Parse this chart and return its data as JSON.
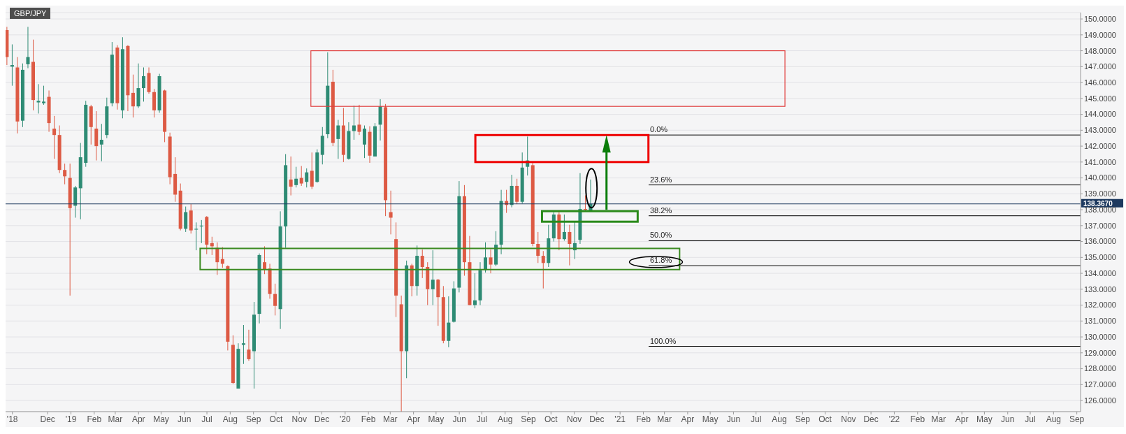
{
  "chart_data": {
    "type": "candlestick",
    "title": "GBP/JPY",
    "x": [
      "2018-10-08",
      "2018-10-15",
      "2018-10-22",
      "2018-10-29",
      "2018-11-05",
      "2018-11-12",
      "2018-11-19",
      "2018-11-26",
      "2018-12-03",
      "2018-12-10",
      "2018-12-17",
      "2018-12-24",
      "2018-12-31",
      "2019-01-07",
      "2019-01-14",
      "2019-01-21",
      "2019-01-28",
      "2019-02-04",
      "2019-02-11",
      "2019-02-18",
      "2019-02-25",
      "2019-03-04",
      "2019-03-11",
      "2019-03-18",
      "2019-03-25",
      "2019-04-01",
      "2019-04-08",
      "2019-04-15",
      "2019-04-22",
      "2019-04-29",
      "2019-05-06",
      "2019-05-13",
      "2019-05-20",
      "2019-05-27",
      "2019-06-03",
      "2019-06-10",
      "2019-06-17",
      "2019-06-24",
      "2019-07-01",
      "2019-07-08",
      "2019-07-15",
      "2019-07-22",
      "2019-07-29",
      "2019-08-05",
      "2019-08-12",
      "2019-08-19",
      "2019-08-26",
      "2019-09-02",
      "2019-09-09",
      "2019-09-16",
      "2019-09-23",
      "2019-09-30",
      "2019-10-07",
      "2019-10-14",
      "2019-10-21",
      "2019-10-28",
      "2019-11-04",
      "2019-11-11",
      "2019-11-18",
      "2019-11-25",
      "2019-12-02",
      "2019-12-09",
      "2019-12-16",
      "2019-12-23",
      "2019-12-30",
      "2020-01-06",
      "2020-01-13",
      "2020-01-20",
      "2020-01-27",
      "2020-02-03",
      "2020-02-10",
      "2020-02-17",
      "2020-02-24",
      "2020-03-02",
      "2020-03-09",
      "2020-03-16",
      "2020-03-23",
      "2020-03-30",
      "2020-04-06",
      "2020-04-13",
      "2020-04-20",
      "2020-04-27",
      "2020-05-04",
      "2020-05-11",
      "2020-05-18",
      "2020-05-25",
      "2020-06-01",
      "2020-06-08",
      "2020-06-15",
      "2020-06-22",
      "2020-06-29",
      "2020-07-06",
      "2020-07-13",
      "2020-07-20",
      "2020-07-27",
      "2020-08-03",
      "2020-08-10",
      "2020-08-17",
      "2020-08-24",
      "2020-08-31",
      "2020-09-07",
      "2020-09-14",
      "2020-09-21",
      "2020-09-28",
      "2020-10-05",
      "2020-10-12",
      "2020-10-19",
      "2020-10-26",
      "2020-11-02",
      "2020-11-09",
      "2020-11-16",
      "2020-11-23"
    ],
    "ohlc": [
      [
        149.3,
        149.5,
        147.1,
        147.6
      ],
      [
        147.0,
        148.4,
        145.8,
        147.1
      ],
      [
        146.95,
        147.6,
        142.8,
        143.55
      ],
      [
        143.6,
        147.2,
        143.2,
        146.8
      ],
      [
        147.15,
        149.5,
        146.9,
        147.6
      ],
      [
        147.3,
        148.7,
        144.25,
        144.9
      ],
      [
        144.75,
        145.9,
        144.05,
        144.85
      ],
      [
        144.7,
        145.8,
        144.6,
        144.8
      ],
      [
        145.1,
        145.5,
        142.9,
        143.45
      ],
      [
        143.1,
        143.9,
        141.2,
        142.7
      ],
      [
        142.7,
        143.3,
        140.3,
        140.5
      ],
      [
        140.5,
        140.9,
        139.6,
        140.1
      ],
      [
        140.0,
        140.9,
        132.6,
        138.1
      ],
      [
        138.25,
        139.5,
        137.5,
        139.4
      ],
      [
        139.35,
        142.2,
        137.4,
        141.3
      ],
      [
        140.95,
        144.85,
        140.7,
        144.6
      ],
      [
        144.5,
        144.6,
        142.1,
        143.2
      ],
      [
        143.1,
        144.2,
        141.1,
        142.0
      ],
      [
        142.1,
        143.4,
        141.05,
        142.4
      ],
      [
        142.7,
        145.05,
        142.5,
        144.5
      ],
      [
        144.7,
        148.55,
        144.5,
        147.75
      ],
      [
        148.2,
        148.35,
        144.3,
        144.7
      ],
      [
        144.25,
        148.85,
        143.75,
        148.1
      ],
      [
        148.3,
        148.35,
        144.2,
        145.2
      ],
      [
        145.35,
        146.5,
        143.8,
        144.5
      ],
      [
        144.5,
        147.2,
        144.4,
        145.65
      ],
      [
        145.65,
        146.95,
        144.8,
        146.4
      ],
      [
        146.6,
        146.95,
        145.3,
        145.4
      ],
      [
        145.4,
        145.6,
        143.8,
        144.25
      ],
      [
        144.25,
        146.55,
        144.1,
        146.4
      ],
      [
        145.5,
        145.55,
        142.25,
        142.9
      ],
      [
        142.6,
        142.85,
        139.6,
        140.05
      ],
      [
        140.25,
        141.3,
        138.5,
        138.95
      ],
      [
        139.2,
        139.65,
        136.7,
        136.8
      ],
      [
        136.8,
        138.2,
        136.6,
        137.85
      ],
      [
        137.95,
        138.35,
        136.5,
        136.7
      ],
      [
        136.75,
        137.2,
        135.45,
        136.8
      ],
      [
        136.95,
        137.35,
        135.9,
        137.0
      ],
      [
        137.55,
        137.6,
        135.2,
        135.8
      ],
      [
        135.9,
        136.3,
        135.15,
        135.7
      ],
      [
        135.6,
        135.95,
        133.9,
        134.7
      ],
      [
        134.9,
        135.65,
        134.35,
        134.6
      ],
      [
        134.45,
        134.5,
        129.15,
        129.7
      ],
      [
        129.5,
        130.1,
        127.05,
        127.1
      ],
      [
        126.75,
        129.6,
        126.75,
        129.25
      ],
      [
        129.5,
        130.75,
        128.3,
        129.6
      ],
      [
        129.2,
        130.45,
        128.5,
        128.6
      ],
      [
        129.1,
        132.2,
        126.75,
        131.4
      ],
      [
        131.45,
        135.25,
        130.85,
        135.15
      ],
      [
        134.7,
        135.7,
        133.95,
        134.25
      ],
      [
        134.3,
        134.6,
        132.4,
        132.7
      ],
      [
        132.7,
        133.35,
        131.35,
        131.95
      ],
      [
        131.75,
        137.9,
        130.5,
        136.95
      ],
      [
        136.95,
        141.5,
        135.6,
        140.8
      ],
      [
        139.9,
        141.35,
        138.9,
        139.45
      ],
      [
        139.55,
        140.7,
        139.4,
        139.95
      ],
      [
        140.0,
        140.75,
        139.5,
        139.65
      ],
      [
        139.75,
        140.6,
        139.4,
        140.35
      ],
      [
        140.45,
        141.6,
        139.3,
        139.45
      ],
      [
        139.75,
        141.8,
        139.7,
        141.6
      ],
      [
        141.45,
        143.2,
        140.85,
        142.65
      ],
      [
        142.75,
        147.9,
        142.5,
        145.8
      ],
      [
        146.05,
        146.8,
        142.0,
        142.2
      ],
      [
        142.45,
        143.65,
        141.2,
        143.3
      ],
      [
        143.3,
        144.4,
        141.0,
        141.45
      ],
      [
        141.2,
        143.5,
        141.15,
        142.95
      ],
      [
        142.95,
        144.55,
        142.4,
        143.3
      ],
      [
        143.35,
        144.6,
        142.7,
        142.9
      ],
      [
        142.1,
        143.3,
        141.25,
        143.1
      ],
      [
        142.9,
        143.25,
        140.95,
        141.4
      ],
      [
        141.35,
        143.45,
        141.35,
        143.25
      ],
      [
        143.35,
        144.95,
        142.35,
        144.5
      ],
      [
        144.45,
        144.65,
        137.6,
        138.6
      ],
      [
        137.85,
        139.2,
        136.45,
        137.5
      ],
      [
        136.15,
        137.2,
        131.25,
        132.6
      ],
      [
        132.05,
        132.6,
        125.3,
        129.1
      ],
      [
        129.1,
        134.8,
        127.4,
        134.5
      ],
      [
        134.5,
        134.6,
        132.55,
        133.2
      ],
      [
        133.2,
        135.75,
        132.6,
        135.1
      ],
      [
        135.1,
        135.5,
        133.7,
        134.4
      ],
      [
        134.4,
        134.7,
        132.0,
        133.0
      ],
      [
        133.0,
        135.45,
        132.0,
        133.6
      ],
      [
        133.6,
        133.65,
        130.7,
        132.5
      ],
      [
        132.5,
        133.2,
        129.6,
        129.75
      ],
      [
        129.75,
        132.55,
        129.35,
        130.9
      ],
      [
        130.95,
        133.5,
        130.9,
        133.05
      ],
      [
        133.1,
        139.8,
        132.8,
        138.85
      ],
      [
        138.85,
        139.55,
        133.85,
        134.7
      ],
      [
        134.7,
        136.35,
        132.0,
        132.0
      ],
      [
        132.0,
        134.0,
        131.8,
        132.3
      ],
      [
        132.3,
        134.7,
        132.0,
        134.2
      ],
      [
        134.2,
        135.95,
        134.05,
        135.0
      ],
      [
        135.0,
        135.5,
        134.0,
        134.55
      ],
      [
        134.55,
        136.65,
        134.45,
        135.8
      ],
      [
        135.8,
        139.25,
        135.2,
        138.55
      ],
      [
        138.55,
        139.25,
        137.8,
        138.3
      ],
      [
        138.3,
        140.2,
        138.15,
        139.5
      ],
      [
        139.5,
        139.95,
        138.35,
        138.5
      ],
      [
        138.5,
        141.6,
        138.4,
        140.65
      ],
      [
        140.7,
        142.6,
        140.15,
        141.1
      ],
      [
        140.8,
        141.0,
        135.7,
        135.85
      ],
      [
        135.85,
        136.6,
        134.65,
        135.1
      ],
      [
        135.1,
        135.4,
        133.05,
        134.65
      ],
      [
        134.65,
        137.05,
        134.4,
        136.2
      ],
      [
        136.2,
        137.85,
        136.0,
        137.7
      ],
      [
        137.7,
        137.85,
        135.45,
        136.15
      ],
      [
        136.15,
        137.7,
        136.05,
        136.6
      ],
      [
        136.6,
        137.05,
        134.5,
        135.85
      ],
      [
        135.45,
        137.3,
        134.9,
        135.9
      ],
      [
        136.1,
        140.3,
        135.85,
        138.05
      ],
      [
        138.05,
        138.9,
        137.95,
        138.0
      ],
      [
        137.95,
        139.9,
        137.95,
        138.37
      ]
    ],
    "colors": [
      "#dd5a44",
      "#2e8b74",
      "#dd5a44",
      "#2e8b74",
      "#2e8b74",
      "#dd5a44",
      "#2e8b74",
      "#2e8b74",
      "#dd5a44",
      "#dd5a44",
      "#dd5a44",
      "#dd5a44",
      "#dd5a44",
      "#2e8b74",
      "#2e8b74",
      "#2e8b74",
      "#dd5a44",
      "#dd5a44",
      "#2e8b74",
      "#2e8b74",
      "#2e8b74",
      "#dd5a44",
      "#2e8b74",
      "#dd5a44",
      "#dd5a44",
      "#2e8b74",
      "#2e8b74",
      "#dd5a44",
      "#dd5a44",
      "#2e8b74",
      "#dd5a44",
      "#dd5a44",
      "#dd5a44",
      "#dd5a44",
      "#2e8b74",
      "#dd5a44",
      "#2e8b74",
      "#2e8b74",
      "#dd5a44",
      "#dd5a44",
      "#dd5a44",
      "#dd5a44",
      "#dd5a44",
      "#dd5a44",
      "#2e8b74",
      "#2e8b74",
      "#dd5a44",
      "#2e8b74",
      "#2e8b74",
      "#dd5a44",
      "#dd5a44",
      "#dd5a44",
      "#2e8b74",
      "#2e8b74",
      "#dd5a44",
      "#2e8b74",
      "#dd5a44",
      "#2e8b74",
      "#dd5a44",
      "#2e8b74",
      "#2e8b74",
      "#2e8b74",
      "#dd5a44",
      "#2e8b74",
      "#dd5a44",
      "#2e8b74",
      "#2e8b74",
      "#dd5a44",
      "#2e8b74",
      "#dd5a44",
      "#2e8b74",
      "#2e8b74",
      "#dd5a44",
      "#dd5a44",
      "#dd5a44",
      "#dd5a44",
      "#2e8b74",
      "#dd5a44",
      "#2e8b74",
      "#dd5a44",
      "#dd5a44",
      "#2e8b74",
      "#dd5a44",
      "#dd5a44",
      "#2e8b74",
      "#2e8b74",
      "#2e8b74",
      "#dd5a44",
      "#dd5a44",
      "#2e8b74",
      "#2e8b74",
      "#2e8b74",
      "#dd5a44",
      "#2e8b74",
      "#2e8b74",
      "#dd5a44",
      "#2e8b74",
      "#dd5a44",
      "#2e8b74",
      "#2e8b74",
      "#dd5a44",
      "#dd5a44",
      "#dd5a44",
      "#2e8b74",
      "#2e8b74",
      "#dd5a44",
      "#2e8b74",
      "#dd5a44",
      "#2e8b74",
      "#2e8b74",
      "#dd5a44",
      "#2e8b74"
    ],
    "xlim": [
      "2018-10-06",
      "2022-09-06"
    ],
    "xticks": [
      {
        "value": "2018-10-15",
        "label": "'18"
      },
      {
        "value": "2018-12-01",
        "label": "Dec"
      },
      {
        "value": "2019-01-01",
        "label": "'19"
      },
      {
        "value": "2019-02-01",
        "label": "Feb"
      },
      {
        "value": "2019-03-01",
        "label": "Mar"
      },
      {
        "value": "2019-04-01",
        "label": "Apr"
      },
      {
        "value": "2019-05-01",
        "label": "May"
      },
      {
        "value": "2019-06-01",
        "label": "Jun"
      },
      {
        "value": "2019-07-01",
        "label": "Jul"
      },
      {
        "value": "2019-08-01",
        "label": "Aug"
      },
      {
        "value": "2019-09-01",
        "label": "Sep"
      },
      {
        "value": "2019-10-01",
        "label": "Oct"
      },
      {
        "value": "2019-11-01",
        "label": "Nov"
      },
      {
        "value": "2019-12-01",
        "label": "Dec"
      },
      {
        "value": "2020-01-01",
        "label": "'20"
      },
      {
        "value": "2020-02-01",
        "label": "Feb"
      },
      {
        "value": "2020-03-01",
        "label": "Mar"
      },
      {
        "value": "2020-04-01",
        "label": "Apr"
      },
      {
        "value": "2020-05-01",
        "label": "May"
      },
      {
        "value": "2020-06-01",
        "label": "Jun"
      },
      {
        "value": "2020-07-01",
        "label": "Jul"
      },
      {
        "value": "2020-08-01",
        "label": "Aug"
      },
      {
        "value": "2020-09-01",
        "label": "Sep"
      },
      {
        "value": "2020-10-01",
        "label": "Oct"
      },
      {
        "value": "2020-11-01",
        "label": "Nov"
      },
      {
        "value": "2020-12-01",
        "label": "Dec"
      },
      {
        "value": "2021-01-01",
        "label": "'21"
      },
      {
        "value": "2021-02-01",
        "label": "Feb"
      },
      {
        "value": "2021-03-01",
        "label": "Mar"
      },
      {
        "value": "2021-04-01",
        "label": "Apr"
      },
      {
        "value": "2021-05-01",
        "label": "May"
      },
      {
        "value": "2021-06-01",
        "label": "Jun"
      },
      {
        "value": "2021-07-01",
        "label": "Jul"
      },
      {
        "value": "2021-08-01",
        "label": "Aug"
      },
      {
        "value": "2021-09-01",
        "label": "Sep"
      },
      {
        "value": "2021-10-01",
        "label": "Oct"
      },
      {
        "value": "2021-11-01",
        "label": "Nov"
      },
      {
        "value": "2021-12-01",
        "label": "Dec"
      },
      {
        "value": "2022-01-01",
        "label": "'22"
      },
      {
        "value": "2022-02-01",
        "label": "Feb"
      },
      {
        "value": "2022-03-01",
        "label": "Mar"
      },
      {
        "value": "2022-04-01",
        "label": "Apr"
      },
      {
        "value": "2022-05-01",
        "label": "May"
      },
      {
        "value": "2022-06-01",
        "label": "Jun"
      },
      {
        "value": "2022-07-01",
        "label": "Jul"
      },
      {
        "value": "2022-08-01",
        "label": "Aug"
      },
      {
        "value": "2022-09-01",
        "label": "Sep"
      }
    ],
    "ylim": [
      125.3,
      150.4
    ],
    "yticks": [
      {
        "value": 126,
        "label": "126.0000"
      },
      {
        "value": 127,
        "label": "127.0000"
      },
      {
        "value": 128,
        "label": "128.0000"
      },
      {
        "value": 129,
        "label": "129.0000"
      },
      {
        "value": 130,
        "label": "130.0000"
      },
      {
        "value": 131,
        "label": "131.0000"
      },
      {
        "value": 132,
        "label": "132.0000"
      },
      {
        "value": 133,
        "label": "133.0000"
      },
      {
        "value": 134,
        "label": "134.0000"
      },
      {
        "value": 135,
        "label": "135.0000"
      },
      {
        "value": 136,
        "label": "136.0000"
      },
      {
        "value": 137,
        "label": "137.0000"
      },
      {
        "value": 138,
        "label": "138.0000"
      },
      {
        "value": 139,
        "label": "139.0000"
      },
      {
        "value": 140,
        "label": "140.0000"
      },
      {
        "value": 141,
        "label": "141.0000"
      },
      {
        "value": 142,
        "label": "142.0000"
      },
      {
        "value": 143,
        "label": "143.0000"
      },
      {
        "value": 144,
        "label": "144.0000"
      },
      {
        "value": 145,
        "label": "145.0000"
      },
      {
        "value": 146,
        "label": "146.0000"
      },
      {
        "value": 147,
        "label": "147.0000"
      },
      {
        "value": 148,
        "label": "148.0000"
      },
      {
        "value": 149,
        "label": "149.0000"
      },
      {
        "value": 150,
        "label": "150.0000"
      }
    ],
    "grid": "y",
    "ref_lines": [
      {
        "axis": "y",
        "value": 138.367,
        "label": "138.3670",
        "color": "#1e3a5f"
      },
      {
        "axis": "y",
        "value": 142.7,
        "color": "#000000"
      },
      {
        "axis": "y",
        "value": 139.56,
        "color": "#000000"
      },
      {
        "axis": "y",
        "value": 137.62,
        "color": "#000000"
      },
      {
        "axis": "y",
        "value": 136.05,
        "color": "#000000"
      },
      {
        "axis": "y",
        "value": 134.48,
        "color": "#000000"
      },
      {
        "axis": "y",
        "value": 129.41,
        "color": "#000000"
      }
    ],
    "annotations": [
      {
        "text": "0.0%",
        "x": "2021-02-08",
        "y": 142.7
      },
      {
        "text": "23.6%",
        "x": "2021-02-08",
        "y": 139.56
      },
      {
        "text": "38.2%",
        "x": "2021-02-08",
        "y": 137.62
      },
      {
        "text": "50.0%",
        "x": "2021-02-08",
        "y": 136.05
      },
      {
        "text": "61.8%",
        "x": "2021-02-08",
        "y": 134.48
      },
      {
        "text": "100.0%",
        "x": "2021-02-08",
        "y": 129.41
      }
    ]
  }
}
